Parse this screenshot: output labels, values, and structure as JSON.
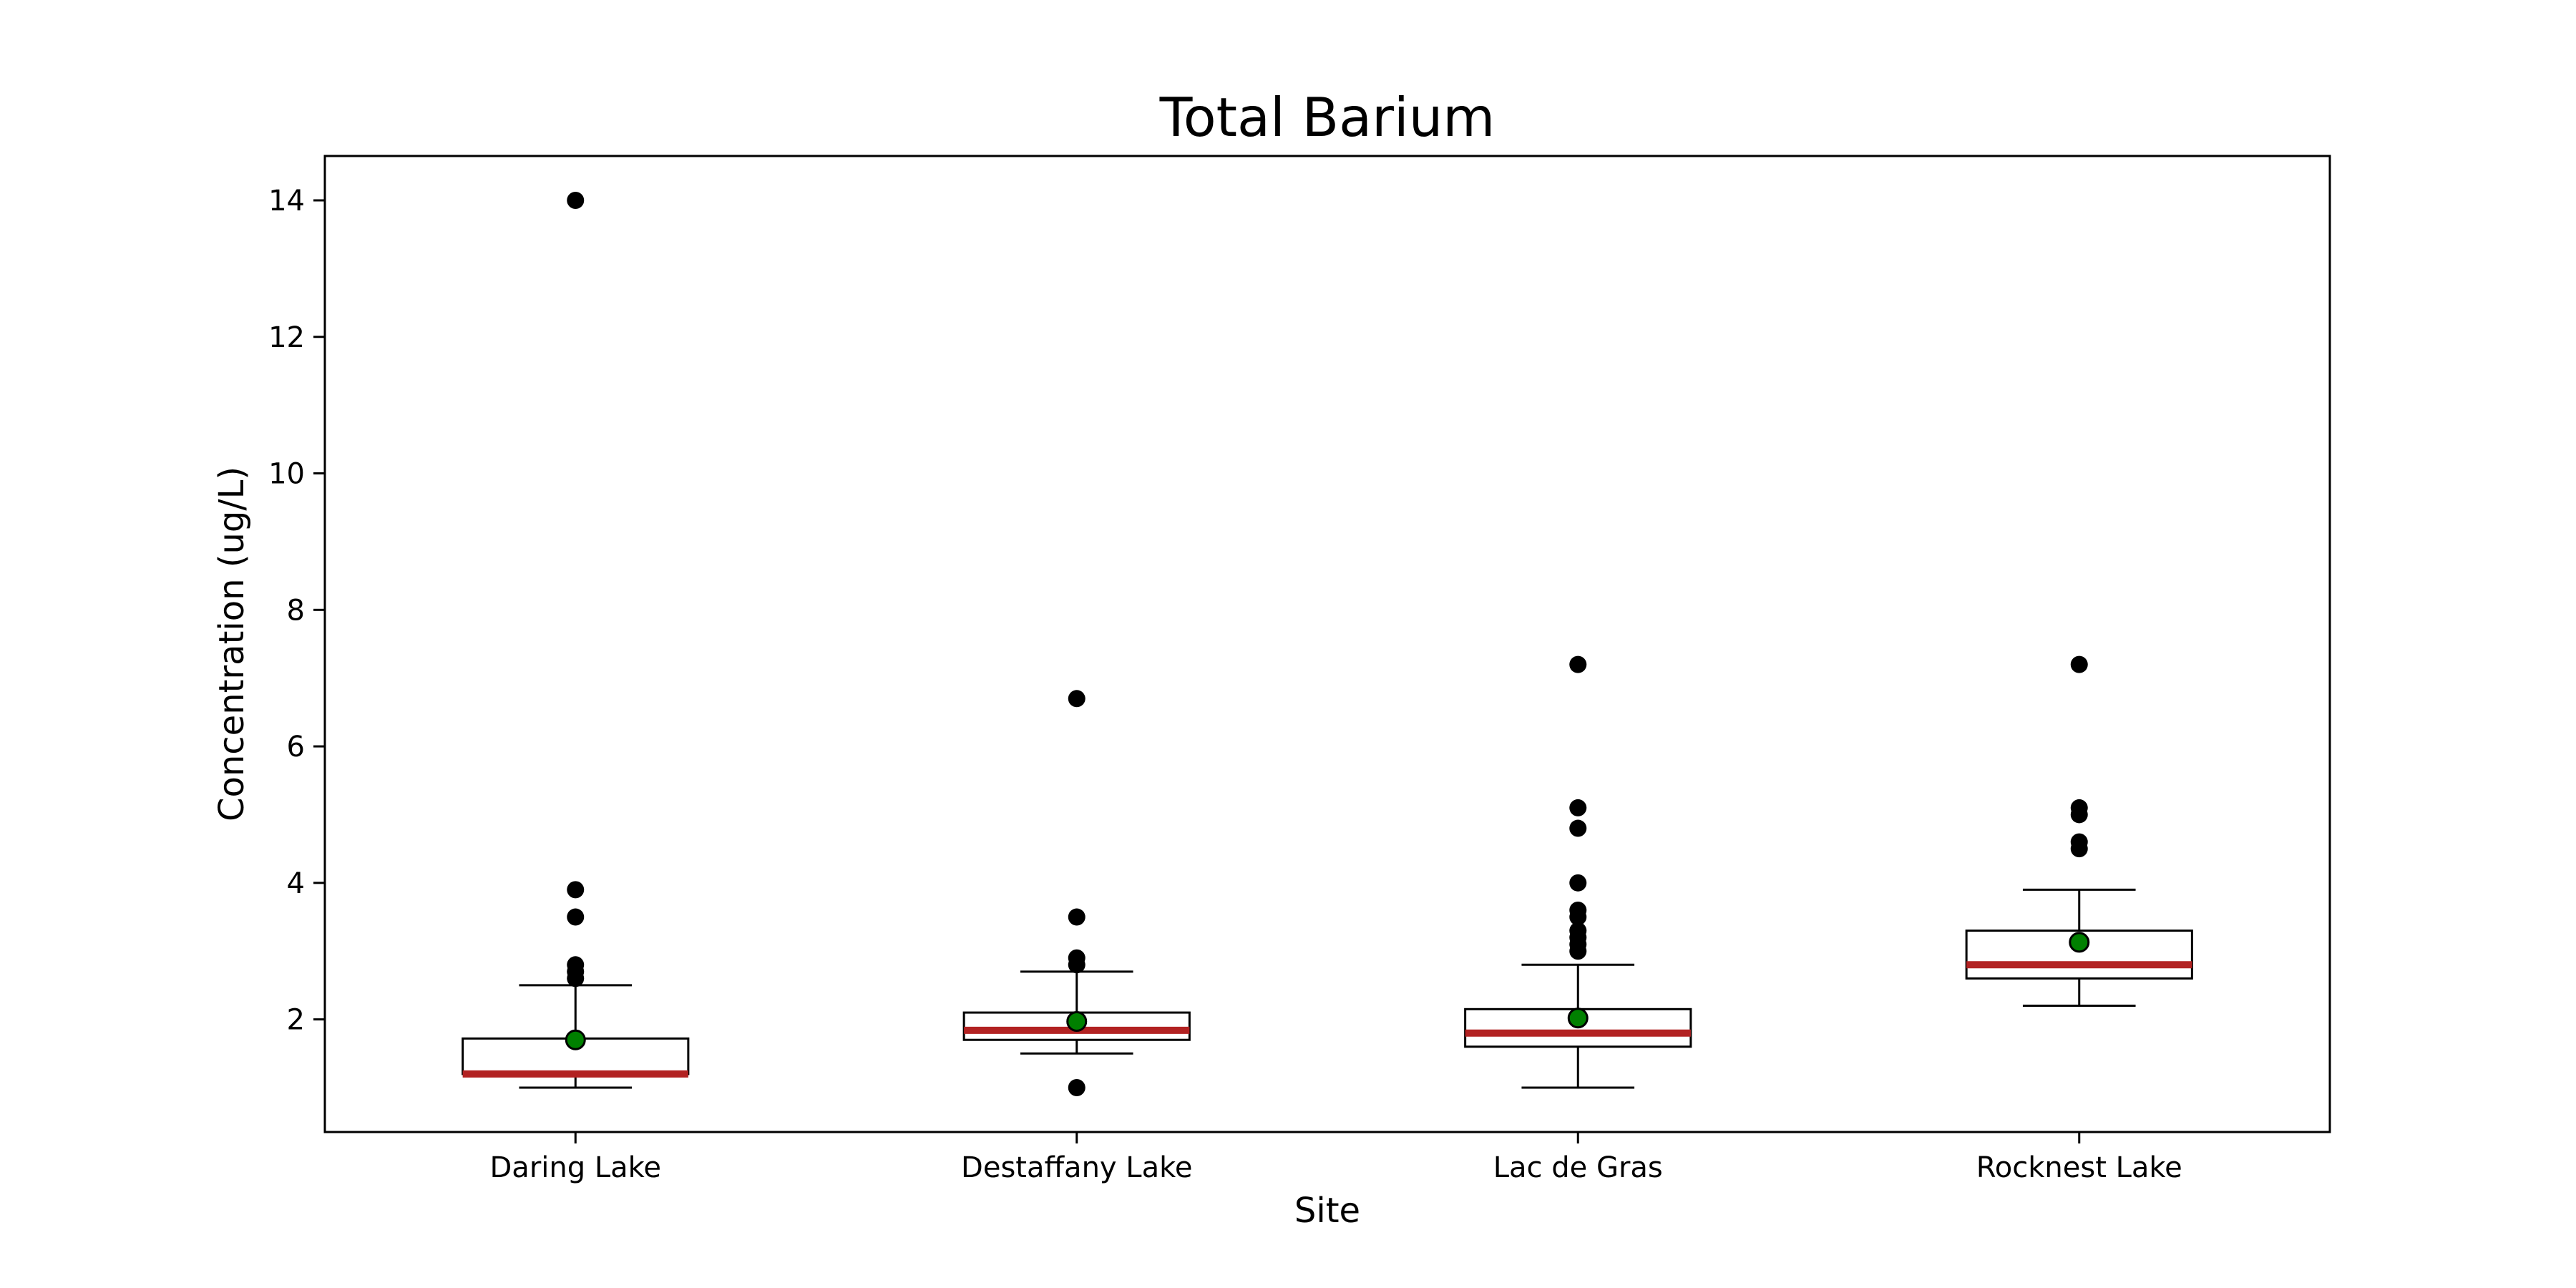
{
  "chart_data": {
    "type": "box",
    "title": "Total Barium",
    "xlabel": "Site",
    "ylabel": "Concentration (ug/L)",
    "categories": [
      "Daring Lake",
      "Destaffany Lake",
      "Lac de Gras",
      "Rocknest Lake"
    ],
    "ylim": [
      0.35,
      14.65
    ],
    "yticks": [
      2,
      4,
      6,
      8,
      10,
      12,
      14
    ],
    "grid": false,
    "boxes": [
      {
        "whisker_low": 1.0,
        "q1": 1.2,
        "median": 1.2,
        "q3": 1.72,
        "whisker_high": 2.5,
        "mean": 1.7,
        "outliers": [
          2.6,
          2.7,
          2.8,
          3.5,
          3.9,
          14.0
        ]
      },
      {
        "whisker_low": 1.5,
        "q1": 1.7,
        "median": 1.84,
        "q3": 2.1,
        "whisker_high": 2.7,
        "mean": 1.97,
        "outliers": [
          1.0,
          2.8,
          2.9,
          3.5,
          6.7
        ]
      },
      {
        "whisker_low": 1.0,
        "q1": 1.6,
        "median": 1.8,
        "q3": 2.15,
        "whisker_high": 2.8,
        "mean": 2.02,
        "outliers": [
          3.0,
          3.1,
          3.2,
          3.3,
          3.5,
          3.6,
          4.0,
          4.8,
          5.1,
          7.2
        ]
      },
      {
        "whisker_low": 2.2,
        "q1": 2.6,
        "median": 2.8,
        "q3": 3.3,
        "whisker_high": 3.9,
        "mean": 3.13,
        "outliers": [
          4.5,
          4.6,
          5.0,
          5.1,
          7.2
        ]
      }
    ],
    "colors": {
      "median": "#b22222",
      "mean": "#008000",
      "box": "#000000",
      "outlier": "#000000"
    }
  }
}
